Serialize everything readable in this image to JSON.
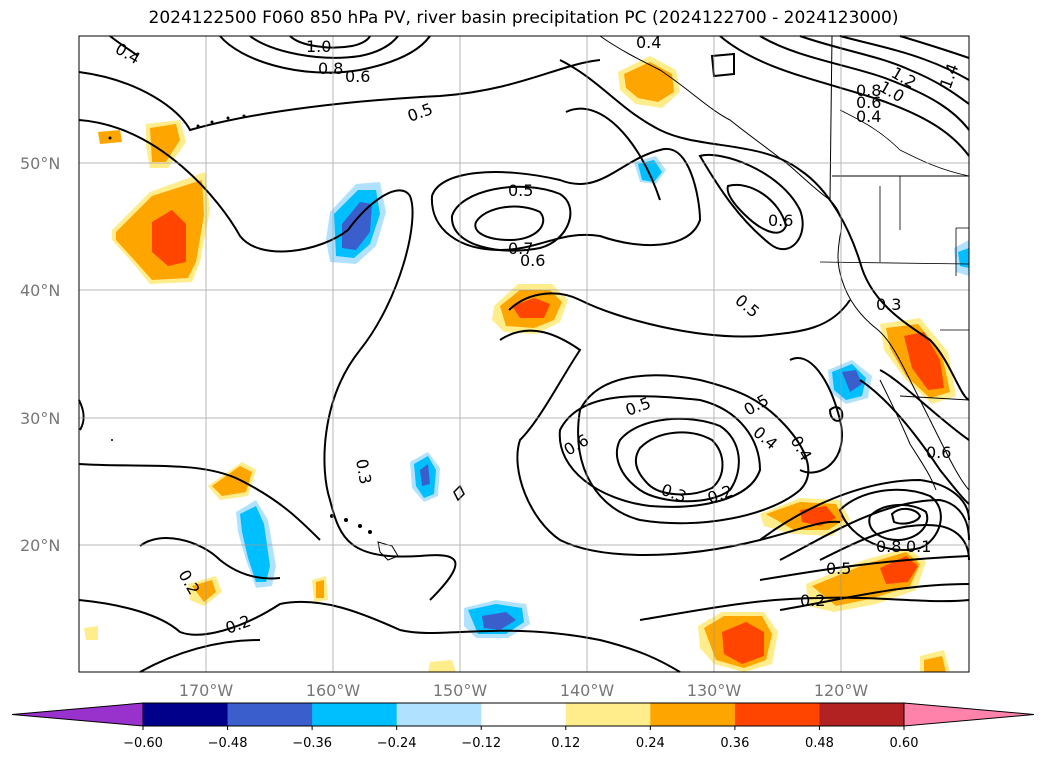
{
  "title": "2024122500 F060 850 hPa PV, river basin precipitation PC (2024122700 - 2024123000)",
  "map": {
    "lon_min": -180,
    "lon_max": -110,
    "lat_min": 10,
    "lat_max": 60,
    "lat_ticks": [
      "50°N",
      "40°N",
      "30°N",
      "20°N"
    ],
    "lon_ticks": [
      "170°W",
      "160°W",
      "150°W",
      "140°W",
      "130°W",
      "120°W"
    ],
    "gridlines": true
  },
  "pv_contour_labels": [
    "0.4",
    "1.0",
    "0.8",
    "0.6",
    "0.5",
    "0.4",
    "1.2",
    "1.0",
    "0.8",
    "0.6",
    "0.4",
    "1.4",
    "0.5",
    "0.7",
    "0.6",
    "0.6",
    "0.5",
    "0.3",
    "0.5",
    "0.6",
    "0.5",
    "0.4",
    "0.4",
    "0.3",
    "0.2",
    "0.6",
    "0.3",
    "0.2",
    "0.8",
    "0.1",
    "0.5",
    "0.2",
    "0.2"
  ],
  "colorbar": {
    "tick_labels": [
      "−0.60",
      "−0.48",
      "−0.36",
      "−0.24",
      "−0.12",
      "0.12",
      "0.24",
      "0.36",
      "0.48",
      "0.60"
    ],
    "colors": [
      "#9932cc",
      "#00008b",
      "#3a5fcd",
      "#00bfff",
      "#b0e2ff",
      "#ffffff",
      "#ffec8b",
      "#ffa500",
      "#ff4500",
      "#b22222",
      "#ff82ab"
    ]
  }
}
